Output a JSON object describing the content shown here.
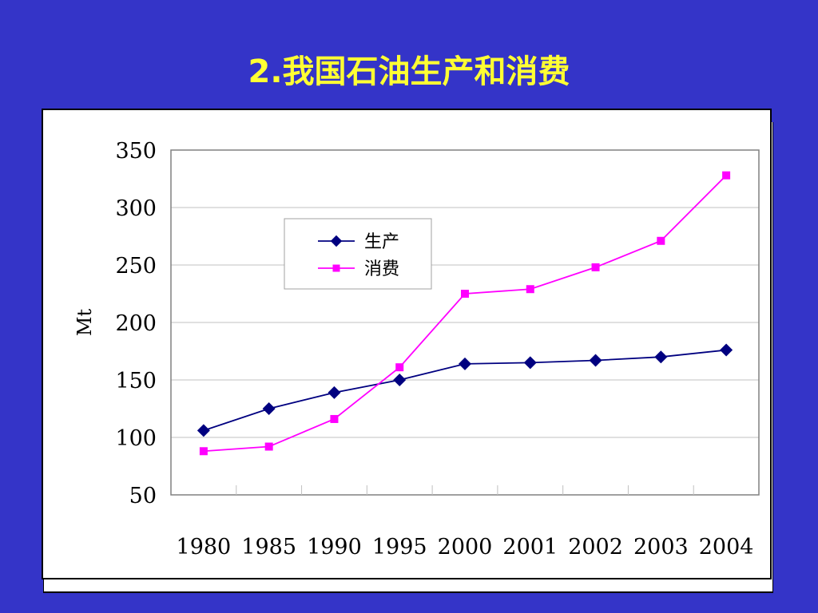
{
  "slide": {
    "title": "2.我国石油生产和消费"
  },
  "chart_data": {
    "type": "line",
    "title": "",
    "xlabel": "",
    "ylabel": "Mt",
    "categories": [
      "1980",
      "1985",
      "1990",
      "1995",
      "2000",
      "2001",
      "2002",
      "2003",
      "2004"
    ],
    "ylim": [
      50,
      350
    ],
    "yticks": [
      "350",
      "300",
      "250",
      "200",
      "150",
      "100",
      "50"
    ],
    "grid": true,
    "legend_position": "upper-left",
    "series": [
      {
        "name": "生产",
        "color": "#000080",
        "marker": "diamond",
        "values": [
          106,
          125,
          139,
          150,
          164,
          165,
          167,
          170,
          176
        ]
      },
      {
        "name": "消费",
        "color": "#ff00ff",
        "marker": "square",
        "values": [
          88,
          92,
          116,
          161,
          225,
          229,
          248,
          271,
          328
        ]
      }
    ]
  }
}
